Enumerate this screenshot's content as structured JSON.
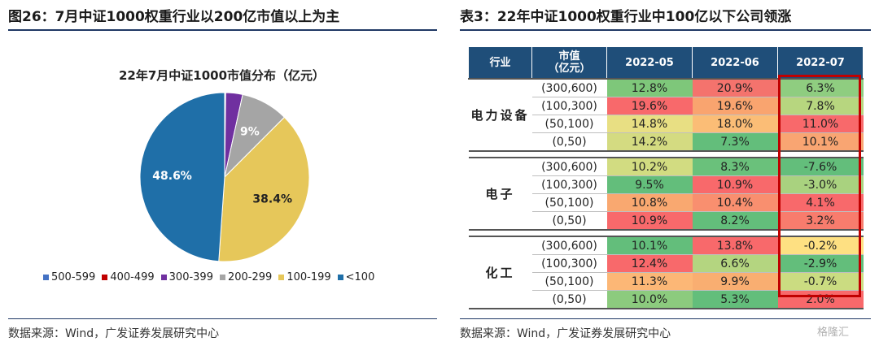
{
  "left_panel": {
    "title": "图26：7月中证1000权重行业以200亿市值以上为主",
    "source": "数据来源：Wind，广发证券发展研究中心"
  },
  "right_panel": {
    "title": "表3：22年中证1000权重行业中100亿以下公司领涨",
    "source": "数据来源：Wind，广发证券发展研究中心"
  },
  "watermark": "格隆汇",
  "chart_data": [
    {
      "type": "pie",
      "title": "22年7月中证1000市值分布（亿元）",
      "categories": [
        "500-599",
        "400-499",
        "300-399",
        "200-299",
        "100-199",
        "<100"
      ],
      "values": [
        0.1,
        0.1,
        3.2,
        9.0,
        38.4,
        48.6
      ],
      "data_labels": [
        "",
        "",
        "",
        "9%",
        "38.4%",
        "48.6%"
      ],
      "colors": [
        "#4472c4",
        "#c00000",
        "#7030a0",
        "#a5a5a5",
        "#e6c75a",
        "#1f6fa8"
      ],
      "legend_position": "bottom"
    },
    {
      "type": "table",
      "headers": [
        "行业",
        "市值\n（亿元）",
        "2022-05",
        "2022-06",
        "2022-07"
      ],
      "groups": [
        {
          "industry": "电力设备",
          "rows": [
            {
              "cap": "(300,600)",
              "values": [
                "12.8%",
                "20.9%",
                "6.3%"
              ],
              "colors": [
                "#7ec77a",
                "#f4736d",
                "#8fcd80"
              ]
            },
            {
              "cap": "(100,300)",
              "values": [
                "19.6%",
                "19.6%",
                "7.8%"
              ],
              "colors": [
                "#f8696b",
                "#f9a46f",
                "#b7d67f"
              ]
            },
            {
              "cap": "(50,100)",
              "values": [
                "14.8%",
                "18.0%",
                "11.0%"
              ],
              "colors": [
                "#e8df83",
                "#fbbd76",
                "#f8696b"
              ]
            },
            {
              "cap": "(0,50)",
              "values": [
                "14.2%",
                "7.3%",
                "10.1%"
              ],
              "colors": [
                "#d4db81",
                "#63be7b",
                "#f9a572"
              ]
            }
          ]
        },
        {
          "industry": "电子",
          "rows": [
            {
              "cap": "(300,600)",
              "values": [
                "10.2%",
                "8.3%",
                "-7.6%"
              ],
              "colors": [
                "#d2dc81",
                "#6ac17b",
                "#63be7b"
              ]
            },
            {
              "cap": "(100,300)",
              "values": [
                "9.5%",
                "10.9%",
                "-3.0%"
              ],
              "colors": [
                "#63be7b",
                "#f8696b",
                "#a9d27f"
              ]
            },
            {
              "cap": "(50,100)",
              "values": [
                "10.8%",
                "10.4%",
                "4.1%"
              ],
              "colors": [
                "#f9a870",
                "#f98f6f",
                "#f8696b"
              ]
            },
            {
              "cap": "(0,50)",
              "values": [
                "10.9%",
                "8.2%",
                "3.2%"
              ],
              "colors": [
                "#f8696b",
                "#63be7b",
                "#f87c6d"
              ]
            }
          ]
        },
        {
          "industry": "化工",
          "rows": [
            {
              "cap": "(300,600)",
              "values": [
                "10.1%",
                "13.8%",
                "-0.2%"
              ],
              "colors": [
                "#63be7b",
                "#f8696b",
                "#fee082"
              ]
            },
            {
              "cap": "(100,300)",
              "values": [
                "12.4%",
                "6.6%",
                "-2.9%"
              ],
              "colors": [
                "#f8696b",
                "#b4d580",
                "#63be7b"
              ]
            },
            {
              "cap": "(50,100)",
              "values": [
                "11.3%",
                "9.9%",
                "-0.7%"
              ],
              "colors": [
                "#fcb776",
                "#f9ae71",
                "#cbdc81"
              ]
            },
            {
              "cap": "(0,50)",
              "values": [
                "10.0%",
                "5.3%",
                "2.0%"
              ],
              "colors": [
                "#8ccb7e",
                "#63be7b",
                "#f8696b"
              ]
            }
          ]
        }
      ]
    }
  ]
}
